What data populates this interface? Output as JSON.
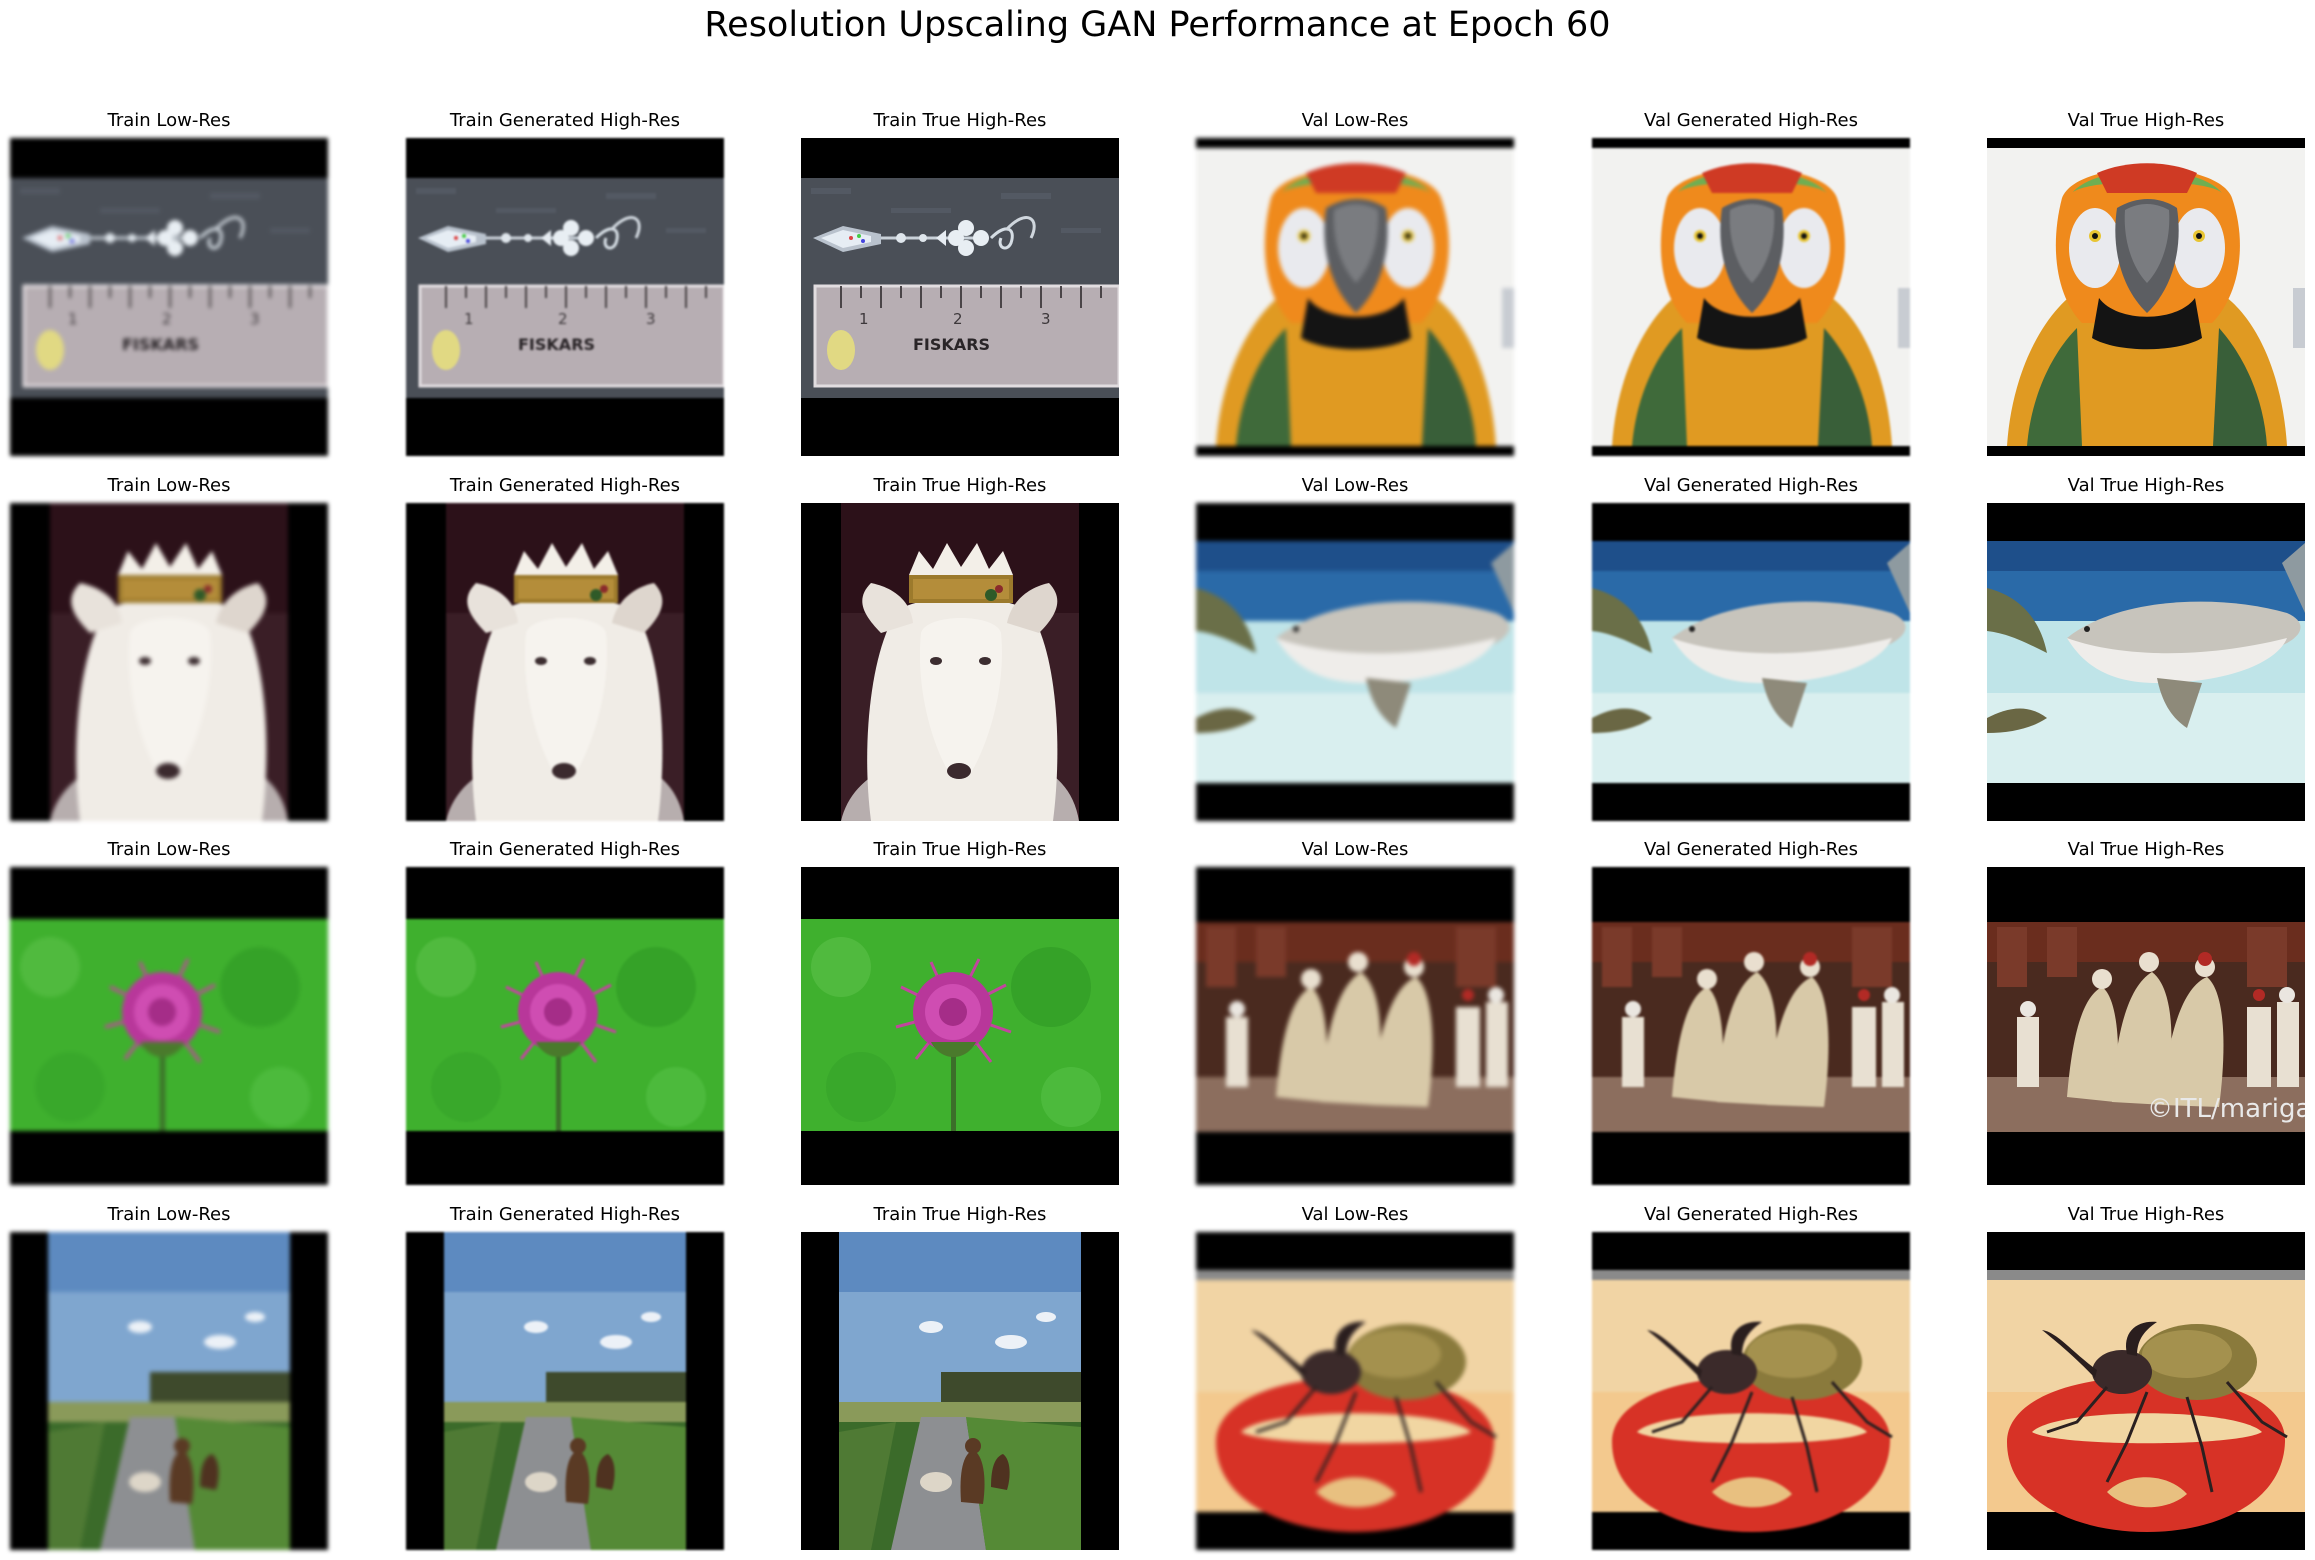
{
  "figure": {
    "title": "Resolution Upscaling GAN Performance at Epoch 60"
  },
  "rows": [
    {
      "subject": "earring-ruler",
      "titles": [
        "Train Low-Res",
        "Train Generated High-Res",
        "Train True High-Res",
        "Val Low-Res",
        "Val Generated High-Res",
        "Val True High-Res"
      ],
      "train_content_text": "FISKARS",
      "val_subject": "parrot"
    },
    {
      "subject": "dog-with-crown",
      "titles": [
        "Train Low-Res",
        "Train Generated High-Res",
        "Train True High-Res",
        "Val Low-Res",
        "Val Generated High-Res",
        "Val True High-Res"
      ],
      "val_subject": "shark"
    },
    {
      "subject": "thistle-flower",
      "titles": [
        "Train Low-Res",
        "Train Generated High-Res",
        "Train True High-Res",
        "Val Low-Res",
        "Val Generated High-Res",
        "Val True High-Res"
      ],
      "val_subject": "ceremony",
      "val_watermark": "©ITL/mariga"
    },
    {
      "subject": "dogs-on-road",
      "titles": [
        "Train Low-Res",
        "Train Generated High-Res",
        "Train True High-Res",
        "Val Low-Res",
        "Val Generated High-Res",
        "Val True High-Res"
      ],
      "val_subject": "beetle-on-apple"
    }
  ],
  "colors": {
    "background": "#ffffff",
    "letterbox": "#000000"
  }
}
